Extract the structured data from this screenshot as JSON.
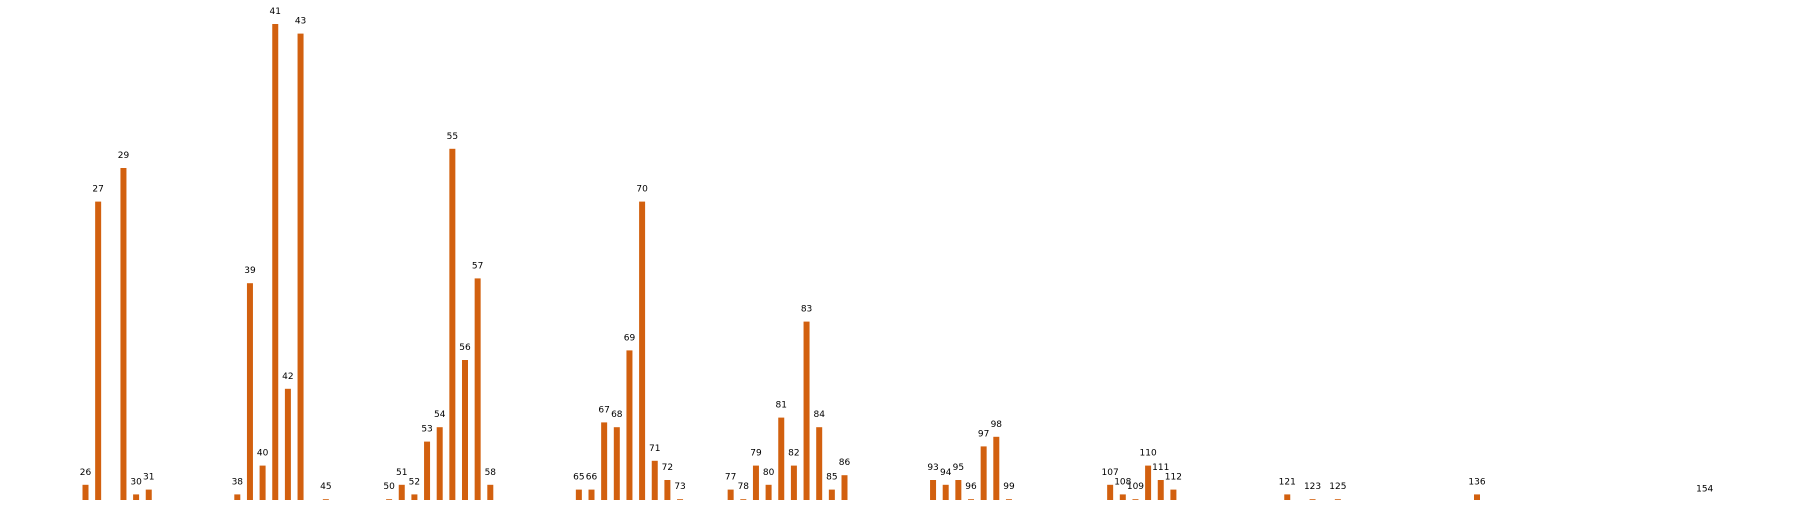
{
  "chart_data": {
    "type": "bar",
    "title": "",
    "xlabel": "",
    "ylabel": "",
    "grid": false,
    "legend": "none",
    "bar_color": "#d2600f",
    "ylim": [
      0,
      100
    ],
    "categories": [
      "26",
      "27",
      "29",
      "30",
      "31",
      "38",
      "39",
      "40",
      "41",
      "42",
      "43",
      "45",
      "50",
      "51",
      "52",
      "53",
      "54",
      "55",
      "56",
      "57",
      "58",
      "65",
      "66",
      "67",
      "68",
      "69",
      "70",
      "71",
      "72",
      "73",
      "77",
      "78",
      "79",
      "80",
      "81",
      "82",
      "83",
      "84",
      "85",
      "86",
      "93",
      "94",
      "95",
      "96",
      "97",
      "98",
      "99",
      "107",
      "108",
      "109",
      "110",
      "111",
      "112",
      "121",
      "123",
      "125",
      "136",
      "154"
    ],
    "x": [
      26,
      27,
      29,
      30,
      31,
      38,
      39,
      40,
      41,
      42,
      43,
      45,
      50,
      51,
      52,
      53,
      54,
      55,
      56,
      57,
      58,
      65,
      66,
      67,
      68,
      69,
      70,
      71,
      72,
      73,
      77,
      78,
      79,
      80,
      81,
      82,
      83,
      84,
      85,
      86,
      93,
      94,
      95,
      96,
      97,
      98,
      99,
      107,
      108,
      109,
      110,
      111,
      112,
      121,
      123,
      125,
      136,
      154
    ],
    "values": [
      4,
      63,
      70,
      2,
      3,
      2,
      46,
      8,
      100,
      24,
      98,
      1,
      1,
      4,
      2,
      13,
      16,
      74,
      30,
      47,
      4,
      3,
      3,
      17,
      16,
      32,
      63,
      9,
      5,
      1,
      3,
      1,
      8,
      4,
      18,
      8,
      38,
      16,
      3,
      6,
      5,
      4,
      5,
      1,
      12,
      14,
      1,
      4,
      2,
      1,
      8,
      5,
      3,
      2,
      1,
      1,
      2,
      0.5
    ]
  }
}
